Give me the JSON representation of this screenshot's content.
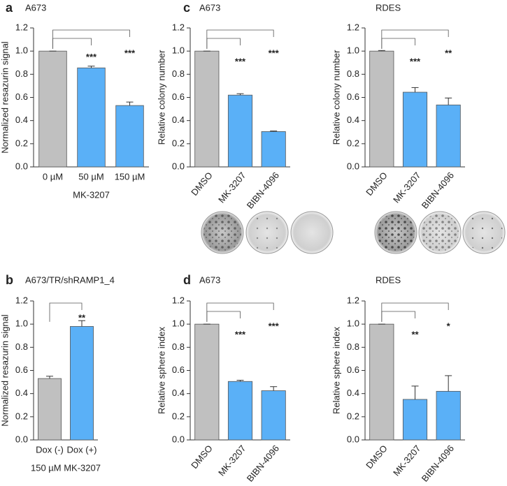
{
  "chart_data": [
    {
      "type": "bar",
      "panel": "a",
      "title": "A673",
      "ylabel": "Normalized resazurin signal",
      "xlabel": "MK-3207",
      "categories": [
        "0 µM",
        "50 µM",
        "150 µM"
      ],
      "values": [
        1.0,
        0.855,
        0.53
      ],
      "errors": [
        0,
        0.015,
        0.03
      ],
      "colors": [
        "#c0c0c0",
        "#5ab0f7",
        "#5ab0f7"
      ],
      "significance": [
        null,
        "***",
        "***"
      ],
      "ylim": [
        0,
        1.2
      ],
      "yticks": [
        {
          "value": 0,
          "label": "0.0"
        },
        0.2,
        0.4,
        0.6,
        0.8,
        {
          "value": 1,
          "label": "1.0"
        },
        1.2
      ]
    },
    {
      "type": "bar",
      "panel": "b",
      "title": "A673/TR/shRAMP1_4",
      "ylabel": "Normalized resazurin signal",
      "xlabel": "150 µM MK-3207",
      "categories": [
        "Dox (-)",
        "Dox (+)"
      ],
      "values": [
        0.53,
        0.98
      ],
      "errors": [
        0.02,
        0.05
      ],
      "colors": [
        "#c0c0c0",
        "#5ab0f7"
      ],
      "significance": [
        null,
        "**"
      ],
      "ylim": [
        0,
        1.2
      ],
      "yticks": [
        {
          "value": 0,
          "label": "0.0"
        },
        0.2,
        0.4,
        0.6,
        0.8,
        {
          "value": 1,
          "label": "1.0"
        },
        1.2
      ]
    },
    {
      "type": "bar",
      "panel": "c",
      "title": "A673",
      "ylabel": "Relative colony number",
      "categories": [
        "DMSO",
        "MK-3207",
        "BIBN-4096"
      ],
      "values": [
        1.0,
        0.62,
        0.305
      ],
      "errors": [
        0,
        0.012,
        0.005
      ],
      "colors": [
        "#c0c0c0",
        "#5ab0f7",
        "#5ab0f7"
      ],
      "significance": [
        null,
        "***",
        "***"
      ],
      "ylim": [
        0,
        1.2
      ],
      "yticks": [
        {
          "value": 0,
          "label": "0.0"
        },
        0.2,
        0.4,
        0.6,
        0.8,
        {
          "value": 1,
          "label": "1.0"
        },
        1.2
      ]
    },
    {
      "type": "bar",
      "title": "RDES",
      "ylabel": "Relative colony number",
      "categories": [
        "DMSO",
        "MK-3207",
        "BIBN-4096"
      ],
      "values": [
        1.0,
        0.645,
        0.535
      ],
      "errors": [
        0.005,
        0.04,
        0.06
      ],
      "colors": [
        "#c0c0c0",
        "#5ab0f7",
        "#5ab0f7"
      ],
      "significance": [
        null,
        "***",
        "**"
      ],
      "ylim": [
        0,
        1.2
      ],
      "yticks": [
        {
          "value": 0,
          "label": "0.0"
        },
        0.2,
        0.4,
        0.6,
        0.8,
        {
          "value": 1,
          "label": "1.0"
        },
        1.2
      ]
    },
    {
      "type": "bar",
      "panel": "d",
      "title": "A673",
      "ylabel": "Relative sphere index",
      "categories": [
        "DMSO",
        "MK-3207",
        "BIBN-4096"
      ],
      "values": [
        1.0,
        0.505,
        0.425
      ],
      "errors": [
        0,
        0.01,
        0.035
      ],
      "colors": [
        "#c0c0c0",
        "#5ab0f7",
        "#5ab0f7"
      ],
      "significance": [
        null,
        "***",
        "***"
      ],
      "ylim": [
        0,
        1.2
      ],
      "yticks": [
        {
          "value": 0,
          "label": "0.0"
        },
        0.2,
        0.4,
        0.6,
        0.8,
        {
          "value": 1,
          "label": "1.0"
        },
        1.2
      ]
    },
    {
      "type": "bar",
      "title": "RDES",
      "ylabel": "Relative sphere index",
      "categories": [
        "DMSO",
        "MK-3207",
        "BIBN-4096"
      ],
      "values": [
        1.0,
        0.35,
        0.42
      ],
      "errors": [
        0,
        0.115,
        0.135
      ],
      "colors": [
        "#c0c0c0",
        "#5ab0f7",
        "#5ab0f7"
      ],
      "significance": [
        null,
        "**",
        "*"
      ],
      "ylim": [
        0,
        1.2
      ],
      "yticks": [
        {
          "value": 0,
          "label": "0.0"
        },
        0.2,
        0.4,
        0.6,
        0.8,
        {
          "value": 1,
          "label": "1.0"
        },
        1.2
      ]
    }
  ]
}
